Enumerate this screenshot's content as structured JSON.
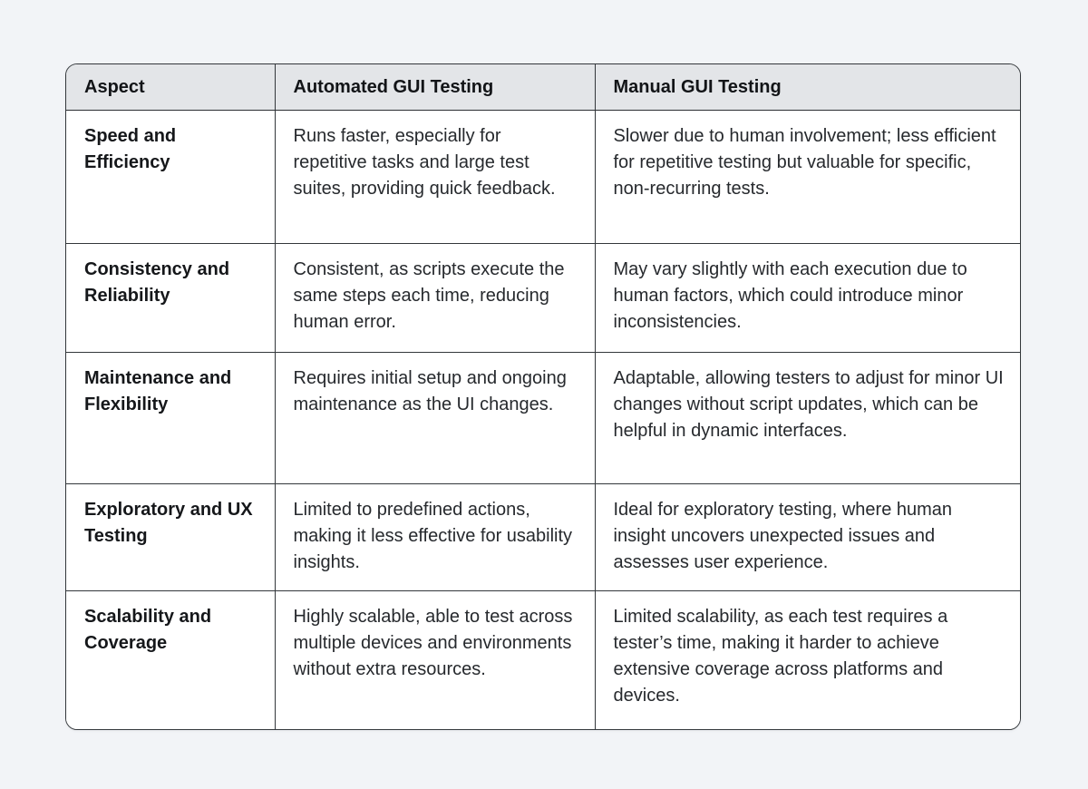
{
  "table": {
    "colors": {
      "page_bg": "#f2f4f7",
      "header_bg": "#e3e5e8",
      "grid_border": "#33373b",
      "cell_bg": "#ffffff",
      "header_text": "#121417",
      "body_text": "#26292d"
    },
    "columns": [
      {
        "label": "Aspect"
      },
      {
        "label": "Automated GUI Testing"
      },
      {
        "label": "Manual GUI Testing"
      }
    ],
    "rows": [
      {
        "aspect": "Speed and Efficiency",
        "automated": "Runs faster, especially for repetitive tasks and large test suites, providing quick feedback.",
        "manual": "Slower due to human involvement; less efficient for repetitive testing but valuable for specific, non-recurring tests."
      },
      {
        "aspect": "Consistency and Reliability",
        "automated": "Consistent, as scripts execute the same steps each time, reducing human error.",
        "manual": "May vary slightly with each execution due to human factors, which could introduce minor inconsistencies."
      },
      {
        "aspect": "Maintenance and Flexibility",
        "automated": "Requires initial setup and ongoing maintenance as the UI changes.",
        "manual": "Adaptable, allowing testers to adjust for minor UI changes without script updates, which can be helpful in dynamic interfaces."
      },
      {
        "aspect": "Exploratory and UX Testing",
        "automated": "Limited to predefined actions, making it less effective for usability insights.",
        "manual": "Ideal for exploratory testing, where human insight uncovers unexpected issues and assesses user experience."
      },
      {
        "aspect": "Scalability and Coverage",
        "automated": "Highly scalable, able to test across multiple devices and environments without extra resources.",
        "manual": "Limited scalability, as each test requires a tester’s time, making it harder to achieve extensive coverage across platforms and devices."
      }
    ]
  }
}
